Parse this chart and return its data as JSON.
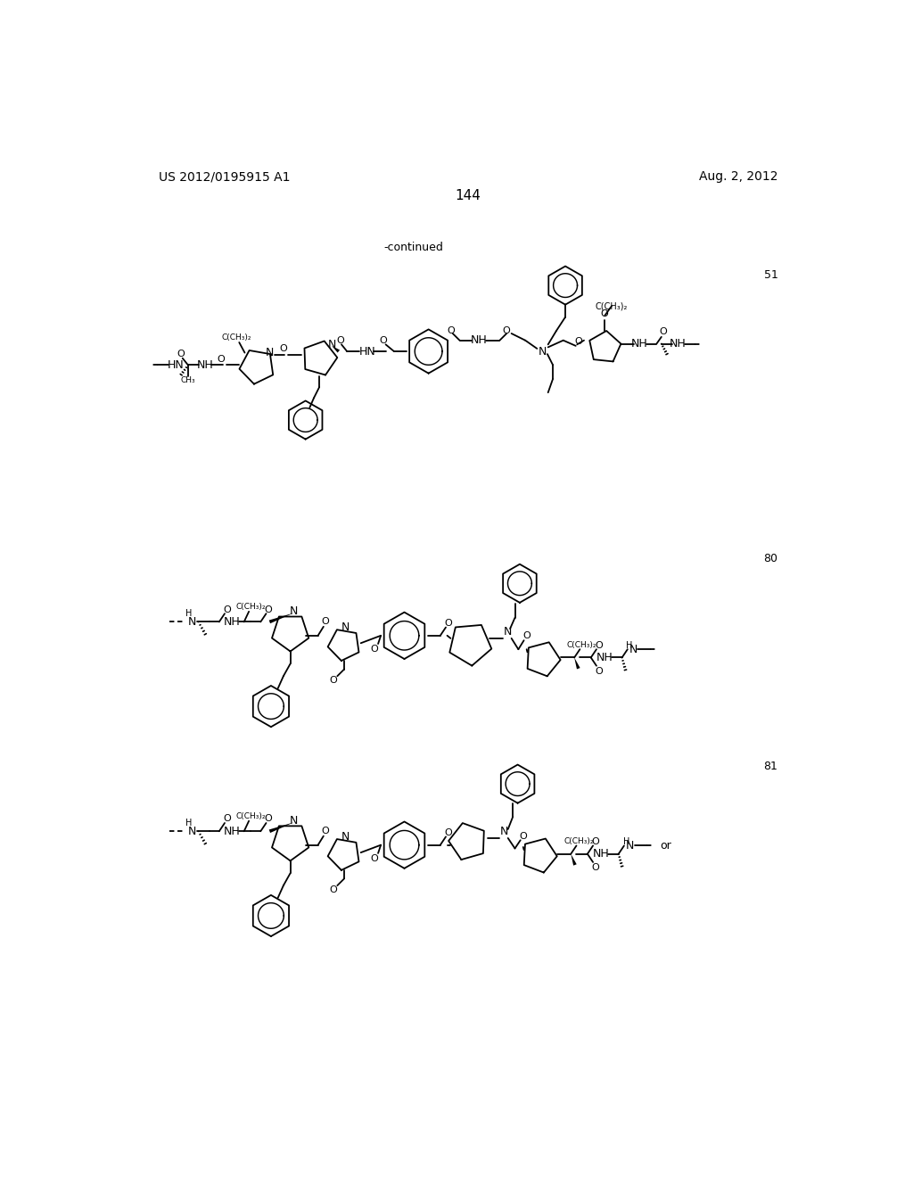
{
  "background_color": "#ffffff",
  "header_left": "US 2012/0195915 A1",
  "header_right": "Aug. 2, 2012",
  "page_number": "144",
  "continued_text": "-continued",
  "compound_51": "51",
  "compound_80": "80",
  "compound_81": "81",
  "or_text": "or"
}
